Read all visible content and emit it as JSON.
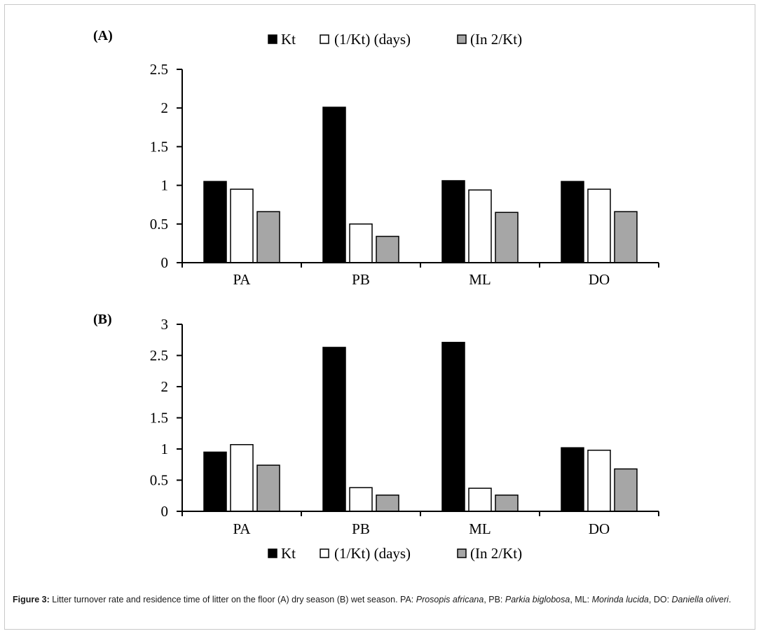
{
  "chart_data": [
    {
      "type": "bar",
      "panel_label": "(A)",
      "categories": [
        "PA",
        "PB",
        "ML",
        "DO"
      ],
      "series": [
        {
          "name": "Kt",
          "values": [
            1.05,
            2.01,
            1.06,
            1.05
          ],
          "color": "#000000"
        },
        {
          "name": "(1/Kt) (days)",
          "values": [
            0.95,
            0.5,
            0.94,
            0.95
          ],
          "color": "#ffffff"
        },
        {
          "name": "(In 2/Kt)",
          "values": [
            0.66,
            0.34,
            0.65,
            0.66
          ],
          "color": "#a6a6a6"
        }
      ],
      "yticks": [
        "0",
        "0.5",
        "1",
        "1.5",
        "2",
        "2.5"
      ],
      "ylim": [
        0,
        2.5
      ],
      "legend_position": "top"
    },
    {
      "type": "bar",
      "panel_label": "(B)",
      "categories": [
        "PA",
        "PB",
        "ML",
        "DO"
      ],
      "series": [
        {
          "name": "Kt",
          "values": [
            0.95,
            2.63,
            2.71,
            1.02
          ],
          "color": "#000000"
        },
        {
          "name": "(1/Kt) (days)",
          "values": [
            1.07,
            0.38,
            0.37,
            0.98
          ],
          "color": "#ffffff"
        },
        {
          "name": "(In 2/Kt)",
          "values": [
            0.74,
            0.26,
            0.26,
            0.68
          ],
          "color": "#a6a6a6"
        }
      ],
      "yticks": [
        "0",
        "0.5",
        "1",
        "1.5",
        "2",
        "2.5",
        "3"
      ],
      "ylim": [
        0,
        3
      ],
      "legend_position": "bottom"
    }
  ],
  "caption": {
    "label": "Figure 3:",
    "text1": " Litter turnover rate and residence time of litter on the floor (A) dry season (B) wet season. PA: ",
    "pa": "Prosopis africana",
    "text2": ", PB: ",
    "pb": "Parkia biglobosa",
    "text3": ", ML: ",
    "ml": "Morinda lucida",
    "text4": ", DO: ",
    "do": "Daniella oliveri",
    "text5": "."
  }
}
